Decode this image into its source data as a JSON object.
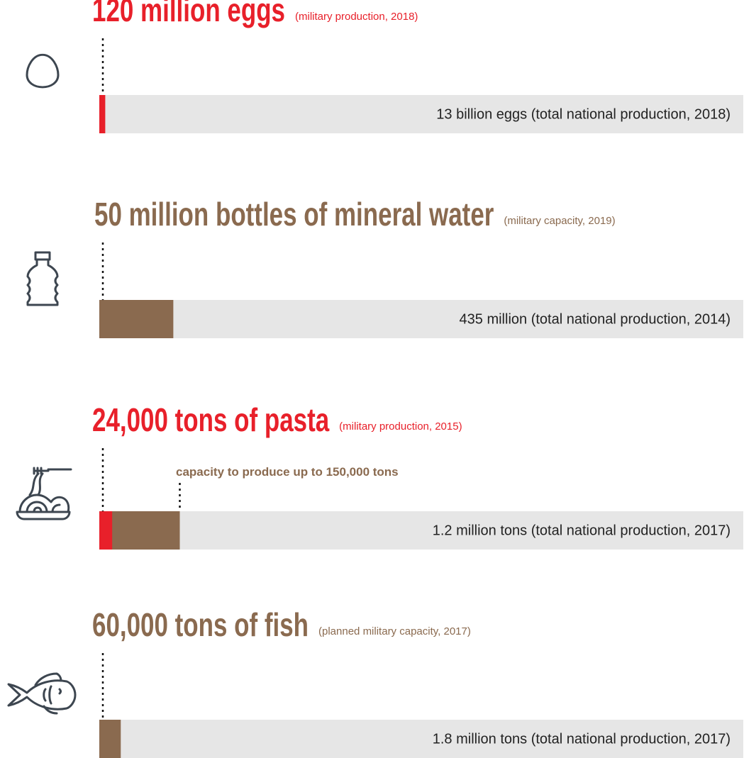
{
  "chart_data": [
    {
      "type": "proportion",
      "title": "120 million eggs",
      "subtitle": "(military production, 2018)",
      "values": [
        120000000
      ],
      "colors": [
        "#e8202a"
      ],
      "total": 13000000000,
      "total_color": "#e6e6e6",
      "total_label": "13 billion eggs (total national production, 2018)"
    },
    {
      "type": "proportion",
      "title": "50 million bottles of mineral water",
      "subtitle": "(military capacity, 2019)",
      "values": [
        50000000
      ],
      "colors": [
        "#8a6a4f"
      ],
      "total": 435000000,
      "total_color": "#e6e6e6",
      "total_label": "435 million (total national production, 2014)"
    },
    {
      "type": "proportion",
      "title": "24,000 tons of pasta",
      "subtitle": "(military production, 2015)",
      "values": [
        24000,
        150000
      ],
      "colors": [
        "#e8202a",
        "#8a6a4f"
      ],
      "total": 1200000,
      "total_color": "#e6e6e6",
      "annotation": "capacity to produce up to 150,000 tons",
      "total_label": "1.2 million tons (total national production, 2017)"
    },
    {
      "type": "proportion",
      "title": "60,000 tons of fish",
      "subtitle": "(planned military capacity, 2017)",
      "values": [
        60000
      ],
      "colors": [
        "#8a6a4f"
      ],
      "total": 1800000,
      "total_color": "#e6e6e6",
      "total_label": "1.8 million tons (total national production, 2017)"
    }
  ]
}
